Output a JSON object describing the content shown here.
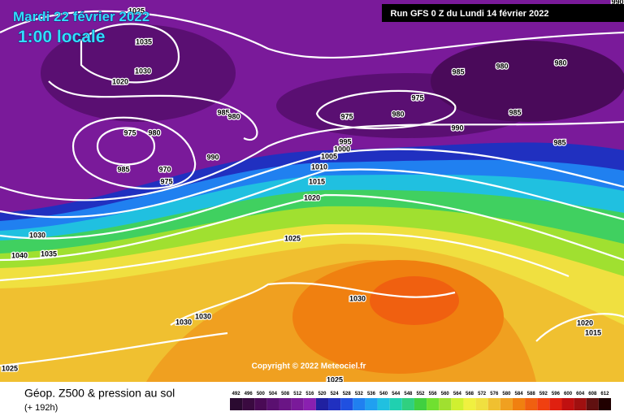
{
  "header": {
    "date": "Mardi 22 février 2022",
    "time": "1:00 locale",
    "run": "Run GFS 0 Z du Lundi 14 février 2022"
  },
  "isobar_labels": [
    "1025",
    "1035",
    "1030",
    "1020",
    "975",
    "980",
    "985",
    "970",
    "975",
    "985",
    "980",
    "990",
    "975",
    "975",
    "980",
    "985",
    "980",
    "980",
    "990",
    "985",
    "985",
    "995",
    "1000",
    "1005",
    "1010",
    "1015",
    "1020",
    "1025",
    "1030",
    "1040",
    "1035",
    "1030",
    "1030",
    "1030",
    "1025",
    "1025",
    "1020",
    "1015",
    "990"
  ],
  "footer": {
    "copyright": "Copyright © 2022 Meteociel.fr",
    "legend_title": "Géop. Z500 & pression au sol",
    "forecast_hour": "(+ 192h)"
  },
  "scale": {
    "labels": [
      492,
      496,
      500,
      504,
      508,
      512,
      516,
      520,
      524,
      528,
      532,
      536,
      540,
      544,
      548,
      552,
      556,
      560,
      564,
      568,
      572,
      576,
      580,
      584,
      588,
      592,
      596,
      600,
      604,
      608,
      612
    ],
    "colors": [
      "#2a0a30",
      "#3a0a40",
      "#4a0a55",
      "#5a1070",
      "#6a1585",
      "#7a1a9a",
      "#8a20b0",
      "#2020a0",
      "#2030c0",
      "#2050e0",
      "#2080f0",
      "#20a0f0",
      "#20c0e0",
      "#20d0b0",
      "#30d080",
      "#40d040",
      "#70e030",
      "#a0e030",
      "#d0f030",
      "#f0f040",
      "#f0e040",
      "#f0c030",
      "#f0a020",
      "#f08010",
      "#f06010",
      "#f04010",
      "#e02010",
      "#c01010",
      "#a01010",
      "#601010",
      "#200000"
    ]
  }
}
